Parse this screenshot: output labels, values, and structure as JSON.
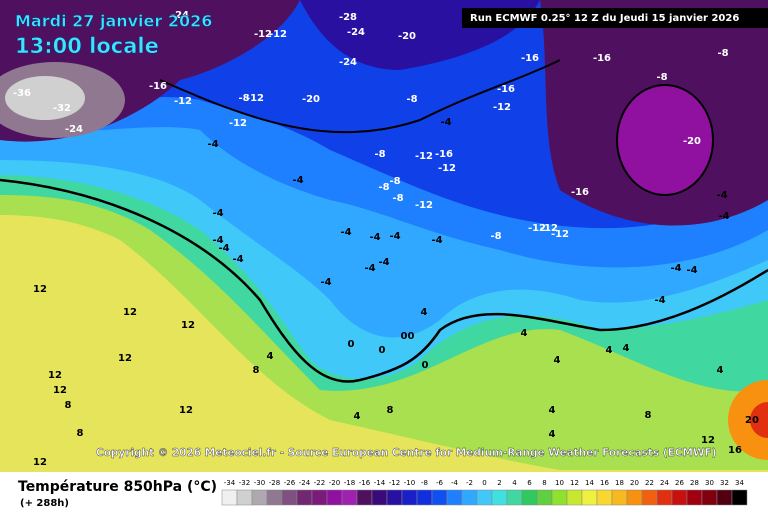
{
  "header": {
    "date": "Mardi 27 janvier 2026",
    "time": "13:00 locale",
    "run": "Run ECMWF 0.25° 12 Z du Jeudi 15 janvier 2026"
  },
  "copyright": "Copyright © 2026 Meteociel.fr - Source European Centre for Medium-Range Weather Forecasts (ECMWF)",
  "legend": {
    "title": "Température 850hPa (°C)",
    "lead": "(+ 288h)",
    "ticks": [
      -34,
      -32,
      -30,
      -28,
      -26,
      -24,
      -22,
      -20,
      -18,
      -16,
      -14,
      -12,
      -10,
      -8,
      -6,
      -4,
      -2,
      0,
      2,
      4,
      6,
      8,
      10,
      12,
      14,
      16,
      18,
      20,
      22,
      24,
      26,
      28,
      30,
      32,
      34
    ],
    "colors": [
      "#f0f0f0",
      "#d0d0d0",
      "#b0a8b0",
      "#907890",
      "#805080",
      "#702870",
      "#7a1a7a",
      "#9010a0",
      "#a020b0",
      "#501060",
      "#3a0a7a",
      "#2a10a0",
      "#1a20c8",
      "#1030e0",
      "#1050f0",
      "#1e80ff",
      "#30a8ff",
      "#40c8f8",
      "#40e0e0",
      "#40d8a0",
      "#30c860",
      "#60d040",
      "#90e030",
      "#c8e830",
      "#f0f040",
      "#f8d830",
      "#f8b820",
      "#f89010",
      "#f06010",
      "#e03010",
      "#c81010",
      "#a00010",
      "#800010",
      "#500010",
      "#000000"
    ]
  },
  "contour_labels": [
    -24,
    -28,
    -24,
    -12,
    -12,
    -20,
    -16,
    -16,
    -8,
    -24,
    -16,
    -12,
    -8,
    -12,
    -20,
    -8,
    -16,
    -12,
    -8,
    -36,
    -32,
    -24,
    -12,
    -4,
    -4,
    -16,
    -12,
    -8,
    -20,
    -12,
    -4,
    -8,
    -8,
    -16,
    -8,
    -12,
    -4,
    -4,
    -4,
    -4,
    -4,
    -4,
    -8,
    -12,
    -12,
    -12,
    -4,
    -4,
    -4,
    -4,
    -4,
    -4,
    -4,
    -4,
    12,
    -4,
    -4,
    12,
    12,
    4,
    4,
    0,
    0,
    0,
    4,
    8,
    12,
    4,
    4,
    4,
    0,
    0,
    12,
    8,
    12,
    4,
    8,
    12,
    4,
    4,
    8,
    12,
    8,
    12,
    16,
    20,
    4
  ]
}
